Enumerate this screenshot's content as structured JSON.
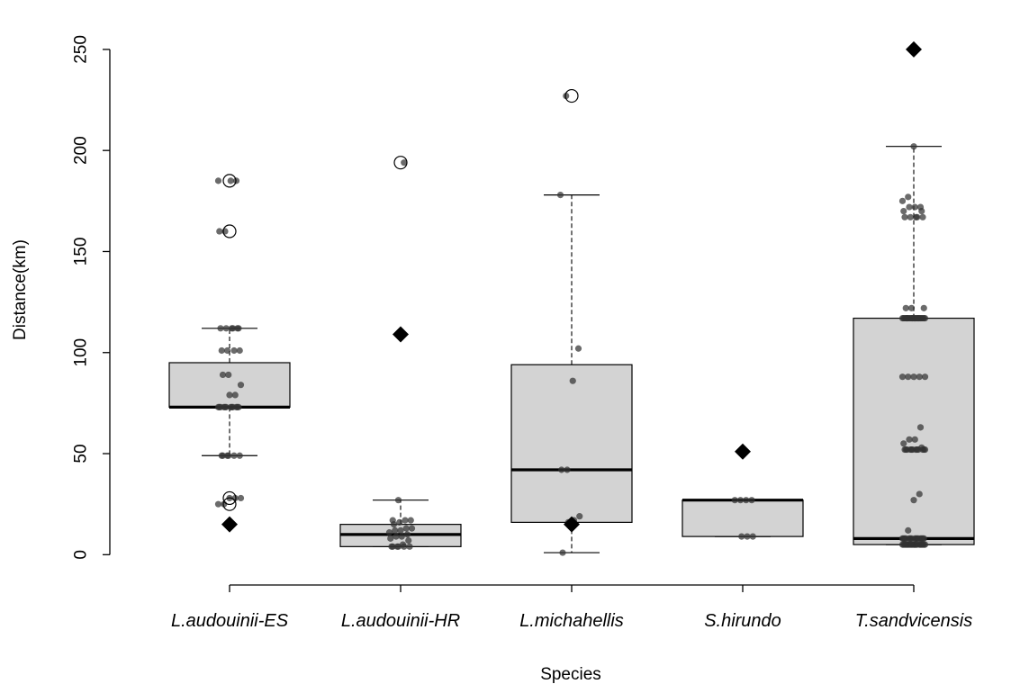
{
  "chart_data": {
    "type": "box",
    "xlabel": "Species",
    "ylabel": "Distance(km)",
    "ylim": [
      -15,
      270
    ],
    "yticks": [
      0,
      50,
      100,
      150,
      200,
      250
    ],
    "categories": [
      "L.audouinii-ES",
      "L.audouinii-HR",
      "L.michahellis",
      "S.hirundo",
      "T.sandvicensis"
    ],
    "boxes": [
      {
        "category": "L.audouinii-ES",
        "q1": 73,
        "median": 73,
        "q3": 95,
        "whisker_low": 49,
        "whisker_high": 112,
        "mean": 15,
        "outliers": [
          185,
          160,
          28,
          25
        ],
        "points": [
          185,
          185,
          185,
          160,
          160,
          112,
          112,
          112,
          112,
          112,
          112,
          101,
          101,
          101,
          101,
          89,
          89,
          84,
          79,
          79,
          73,
          73,
          73,
          73,
          73,
          73,
          73,
          73,
          73,
          73,
          73,
          73,
          49,
          49,
          49,
          49,
          49,
          49,
          28,
          28,
          28,
          25,
          25
        ]
      },
      {
        "category": "L.audouinii-HR",
        "q1": 4,
        "median": 10,
        "q3": 15,
        "whisker_low": 4,
        "whisker_high": 27,
        "mean": 109,
        "outliers": [
          194
        ],
        "points": [
          194,
          27,
          17,
          17,
          17,
          16,
          15,
          13,
          13,
          12,
          12,
          11,
          10,
          9,
          9,
          8,
          7,
          5,
          4,
          4,
          4,
          4,
          4,
          4
        ]
      },
      {
        "category": "L.michahellis",
        "q1": 16,
        "median": 42,
        "q3": 94,
        "whisker_low": 1,
        "whisker_high": 178,
        "mean": 15,
        "outliers": [
          227
        ],
        "points": [
          227,
          178,
          102,
          86,
          42,
          42,
          19,
          17,
          16,
          1
        ]
      },
      {
        "category": "S.hirundo",
        "q1": 9,
        "median": 27,
        "q3": 27,
        "whisker_low": 9,
        "whisker_high": 27,
        "mean": 51,
        "outliers": [],
        "points": [
          27,
          27,
          27,
          27,
          9,
          9,
          9
        ]
      },
      {
        "category": "T.sandvicensis",
        "q1": 5,
        "median": 8,
        "q3": 117,
        "whisker_low": 5,
        "whisker_high": 202,
        "mean": 250,
        "outliers": [],
        "points": [
          202,
          177,
          175,
          172,
          172,
          172,
          170,
          170,
          167,
          167,
          167,
          167,
          167,
          122,
          122,
          122,
          117,
          117,
          117,
          117,
          117,
          117,
          117,
          117,
          117,
          117,
          117,
          117,
          117,
          117,
          117,
          117,
          117,
          117,
          117,
          117,
          117,
          117,
          117,
          117,
          88,
          88,
          88,
          88,
          88,
          63,
          57,
          57,
          55,
          53,
          52,
          52,
          52,
          52,
          52,
          52,
          52,
          52,
          52,
          52,
          52,
          52,
          30,
          27,
          12,
          8,
          8,
          8,
          8,
          8,
          8,
          8,
          8,
          8,
          8,
          8,
          8,
          8,
          8,
          8,
          5,
          5,
          5,
          5,
          5,
          5,
          5,
          5,
          5,
          5,
          5,
          5,
          5,
          5,
          5,
          5,
          5,
          5,
          5,
          5
        ]
      }
    ]
  }
}
